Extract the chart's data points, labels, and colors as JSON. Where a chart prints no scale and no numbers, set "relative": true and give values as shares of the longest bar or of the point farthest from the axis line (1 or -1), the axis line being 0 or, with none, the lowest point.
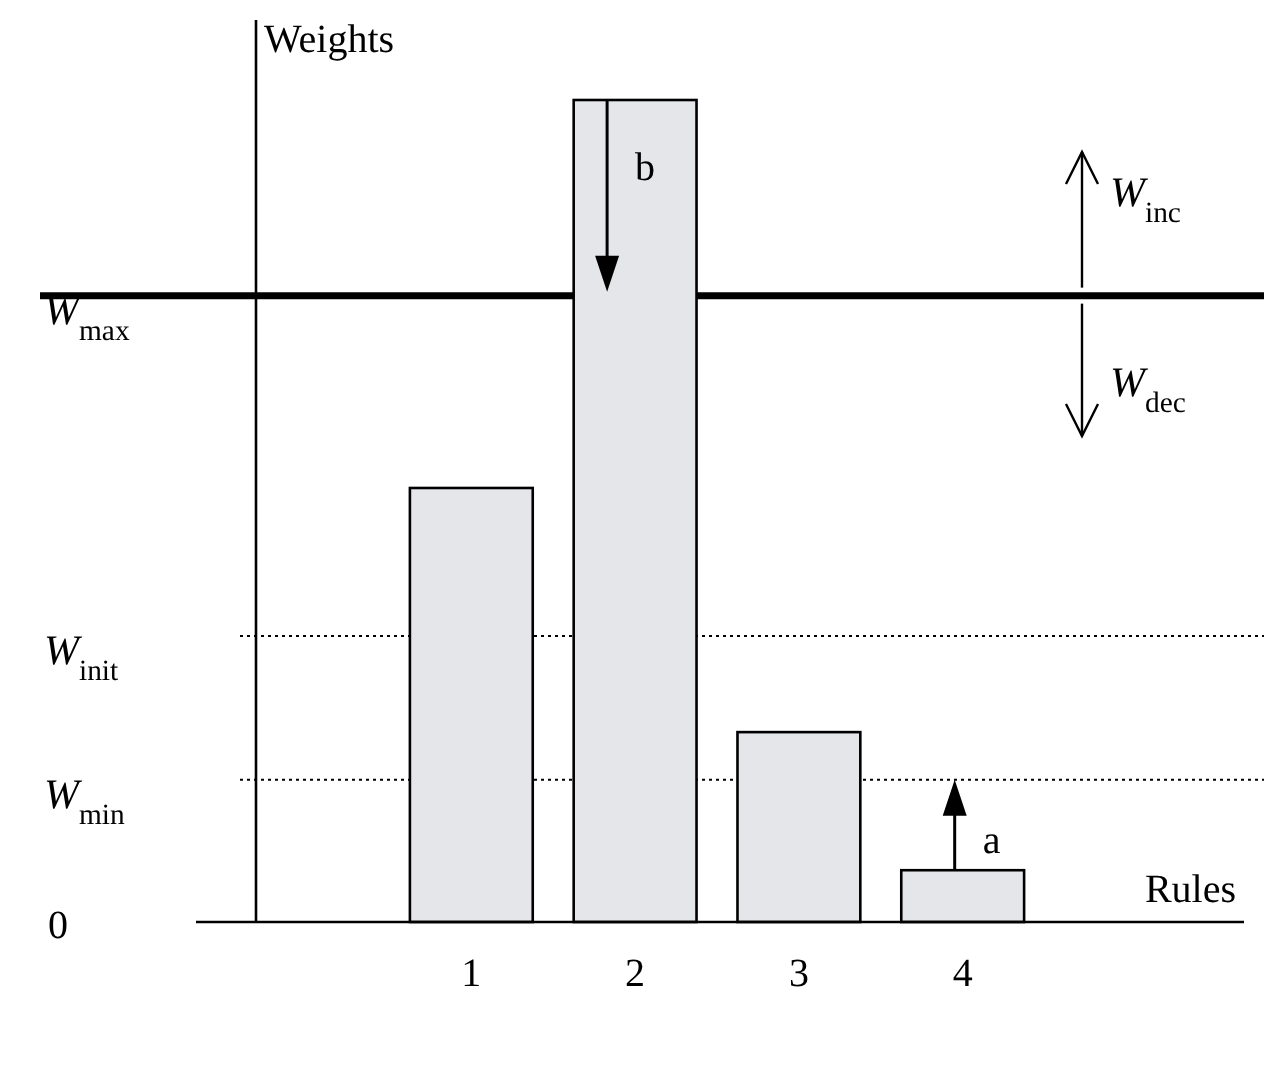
{
  "chart_data": {
    "type": "bar",
    "relative": true,
    "ylabel": "Weights",
    "xlabel": "Rules",
    "categories": [
      "1",
      "2",
      "3",
      "4"
    ],
    "values": [
      0.528,
      1,
      0.231,
      0.063
    ],
    "color": "#e4e6ea",
    "ref_lines": [
      {
        "axis": "y",
        "value": 0.762,
        "label": "W$_{max}$",
        "line_style": "solid",
        "color": "#000000"
      },
      {
        "axis": "y",
        "value": 0.348,
        "label": "W$_{init}$",
        "line_style": "dotted",
        "color": "#000000"
      },
      {
        "axis": "y",
        "value": 0.173,
        "label": "W$_{min}$",
        "line_style": "dotted",
        "color": "#000000"
      }
    ],
    "annotations": [
      "0",
      "a",
      "b",
      "W$_{inc}$",
      "W$_{dec}$"
    ]
  }
}
